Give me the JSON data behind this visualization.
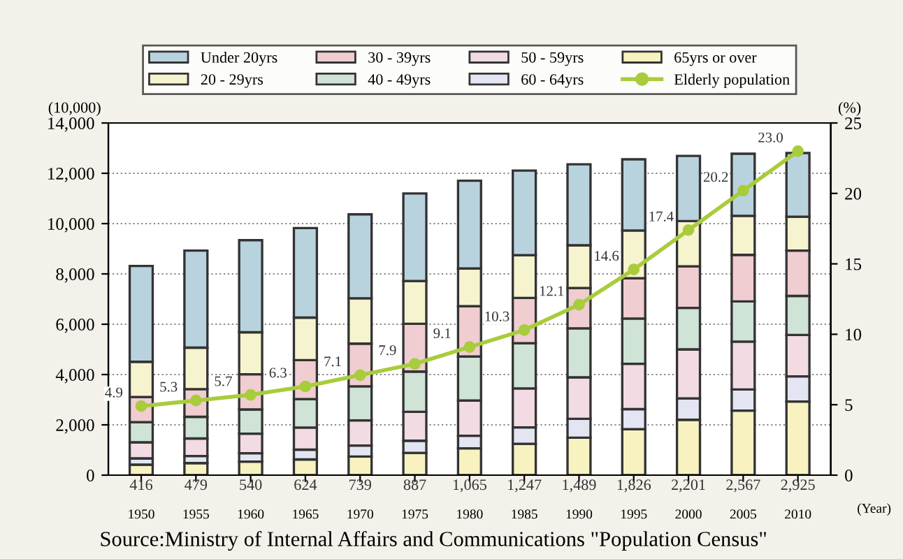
{
  "chart_data": {
    "type": "bar",
    "stacked": true,
    "categories": [
      "1950",
      "1955",
      "1960",
      "1965",
      "1970",
      "1975",
      "1980",
      "1985",
      "1990",
      "1995",
      "2000",
      "2005",
      "2010"
    ],
    "series": [
      {
        "name": "65yrs or over",
        "color": "#f7f2c0",
        "values": [
          416,
          479,
          540,
          624,
          739,
          887,
          1065,
          1247,
          1489,
          1826,
          2201,
          2567,
          2925
        ],
        "value_labels": [
          "416",
          "479",
          "540",
          "624",
          "739",
          "887",
          "1,065",
          "1,247",
          "1,489",
          "1,826",
          "2,201",
          "2,567",
          "2,925"
        ]
      },
      {
        "name": "60 - 64yrs",
        "color": "#e3e6f2",
        "values": [
          250,
          280,
          330,
          390,
          440,
          480,
          500,
          650,
          750,
          800,
          850,
          840,
          1000
        ]
      },
      {
        "name": "50 - 59yrs",
        "color": "#f2dbe3",
        "values": [
          640,
          700,
          780,
          880,
          1000,
          1150,
          1400,
          1550,
          1650,
          1800,
          1950,
          1900,
          1650
        ]
      },
      {
        "name": "40 - 49yrs",
        "color": "#cfe3d6",
        "values": [
          800,
          860,
          960,
          1130,
          1350,
          1600,
          1750,
          1800,
          1950,
          1800,
          1650,
          1600,
          1550
        ]
      },
      {
        "name": "30 - 39yrs",
        "color": "#f0cdd0",
        "values": [
          1000,
          1100,
          1400,
          1550,
          1700,
          1900,
          2000,
          1800,
          1600,
          1600,
          1650,
          1850,
          1800
        ]
      },
      {
        "name": "20 - 29yrs",
        "color": "#f6f3cf",
        "values": [
          1400,
          1650,
          1670,
          1690,
          1800,
          1700,
          1500,
          1700,
          1700,
          1900,
          1800,
          1550,
          1350
        ]
      },
      {
        "name": "Under 20yrs",
        "color": "#b9d3de",
        "values": [
          3810,
          3860,
          3660,
          3560,
          3340,
          3480,
          3490,
          3360,
          3220,
          2830,
          2590,
          2470,
          2530
        ]
      },
      {
        "name": "Elderly population",
        "type": "line",
        "axis": "y2",
        "color": "#a8cc3c",
        "marker": "circle",
        "values": [
          4.9,
          5.3,
          5.7,
          6.3,
          7.1,
          7.9,
          9.1,
          10.3,
          12.1,
          14.6,
          17.4,
          20.2,
          23.0
        ],
        "value_labels": [
          "4.9",
          "5.3",
          "5.7",
          "6.3",
          "7.1",
          "7.9",
          "9.1",
          "10.3",
          "12.1",
          "14.6",
          "17.4",
          "20.2",
          "23.0"
        ]
      }
    ],
    "ylim": [
      0,
      14000
    ],
    "yticks": [
      0,
      {
        "value": 2000,
        "label": "2,000"
      },
      {
        "value": 4000,
        "label": "4,000"
      },
      {
        "value": 6000,
        "label": "6,000"
      },
      {
        "value": 8000,
        "label": "8,000"
      },
      {
        "value": 10000,
        "label": "10,000"
      },
      {
        "value": 12000,
        "label": "12,000"
      },
      {
        "value": 14000,
        "label": "14,000"
      }
    ],
    "y2lim": [
      0,
      25
    ],
    "y2ticks": [
      0,
      5,
      10,
      15,
      20,
      25
    ],
    "ylabel": "(10,000)",
    "y2label": "(%)",
    "xlabel": "(Year)",
    "grid": "y",
    "legend": "top",
    "annotations": [
      "Source:Ministry of Internal Affairs and Communications \"Population Census\""
    ]
  }
}
